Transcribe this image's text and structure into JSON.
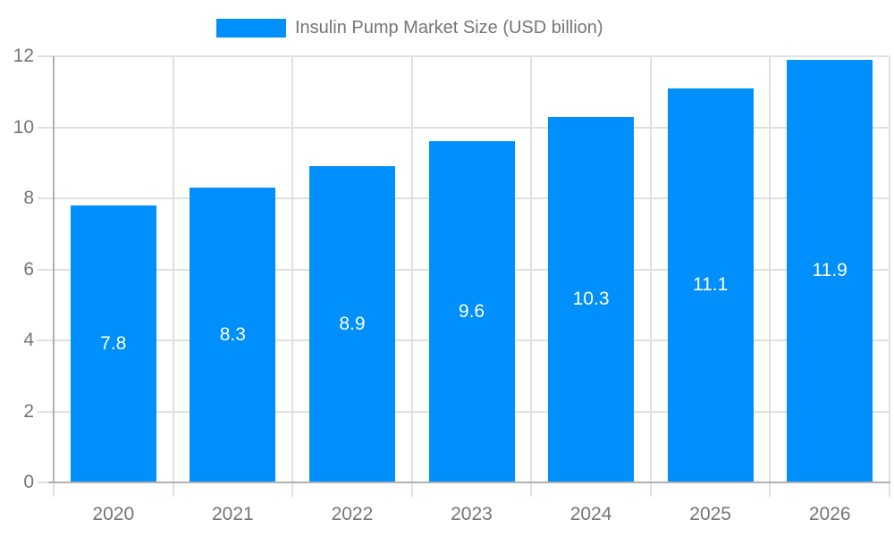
{
  "chart_data": {
    "type": "bar",
    "title": "Insulin Pump Market Size (USD billion)",
    "categories": [
      "2020",
      "2021",
      "2022",
      "2023",
      "2024",
      "2025",
      "2026"
    ],
    "values": [
      7.8,
      8.3,
      8.9,
      9.6,
      10.3,
      11.1,
      11.9
    ],
    "data_labels": [
      "7.8",
      "8.3",
      "8.9",
      "9.6",
      "10.3",
      "11.1",
      "11.9"
    ],
    "xlabel": "",
    "ylabel": "",
    "ylim": [
      0,
      12
    ],
    "yticks": [
      0,
      2,
      4,
      6,
      8,
      10,
      12
    ],
    "ytick_labels": [
      "0",
      "2",
      "4",
      "6",
      "8",
      "10",
      "12"
    ],
    "grid": true,
    "legend_position": "top-center",
    "colors": {
      "bar": "#008FFB",
      "bar_label": "#ffffff",
      "axis_text": "#757575",
      "gridline": "#e0e0e0",
      "axis_line": "#b0b0b0",
      "background": "#ffffff"
    }
  }
}
